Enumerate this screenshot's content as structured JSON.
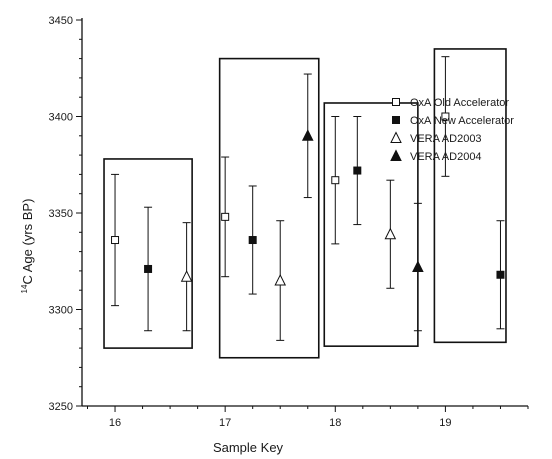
{
  "chart_data": {
    "type": "scatter",
    "xlabel": "Sample Key",
    "ylabel_superscript": "14",
    "ylabel": "C Age (yrs BP)",
    "xlim": [
      15.7,
      19.75
    ],
    "ylim": [
      3250,
      3450
    ],
    "xticks": [
      16,
      17,
      18,
      19
    ],
    "yticks": [
      3250,
      3300,
      3350,
      3400,
      3450
    ],
    "legend_position": "right",
    "series": [
      {
        "name": "OxA Old Accelerator",
        "marker": "square-open",
        "points": [
          {
            "x": 16.0,
            "y": 3336,
            "err_low": 3302,
            "err_high": 3370
          },
          {
            "x": 17.0,
            "y": 3348,
            "err_low": 3317,
            "err_high": 3379
          },
          {
            "x": 18.0,
            "y": 3367,
            "err_low": 3334,
            "err_high": 3400
          },
          {
            "x": 19.0,
            "y": 3400,
            "err_low": 3369,
            "err_high": 3431
          }
        ]
      },
      {
        "name": "OxA New Accelerator",
        "marker": "square-filled",
        "points": [
          {
            "x": 16.3,
            "y": 3321,
            "err_low": 3289,
            "err_high": 3353
          },
          {
            "x": 17.25,
            "y": 3336,
            "err_low": 3308,
            "err_high": 3364
          },
          {
            "x": 18.2,
            "y": 3372,
            "err_low": 3344,
            "err_high": 3400
          },
          {
            "x": 19.5,
            "y": 3318,
            "err_low": 3290,
            "err_high": 3346
          }
        ]
      },
      {
        "name": "VERA AD2003",
        "marker": "triangle-open",
        "points": [
          {
            "x": 16.65,
            "y": 3317,
            "err_low": 3289,
            "err_high": 3345
          },
          {
            "x": 17.5,
            "y": 3315,
            "err_low": 3284,
            "err_high": 3346
          },
          {
            "x": 18.5,
            "y": 3339,
            "err_low": 3311,
            "err_high": 3367
          }
        ]
      },
      {
        "name": "VERA AD2004",
        "marker": "triangle-filled",
        "points": [
          {
            "x": 17.75,
            "y": 3390,
            "err_low": 3358,
            "err_high": 3422
          },
          {
            "x": 18.75,
            "y": 3322,
            "err_low": 3289,
            "err_high": 3355
          }
        ]
      }
    ],
    "group_boxes": [
      {
        "x0": 15.9,
        "x1": 16.7,
        "y0": 3280,
        "y1": 3378
      },
      {
        "x0": 16.95,
        "x1": 17.85,
        "y0": 3275,
        "y1": 3430
      },
      {
        "x0": 17.9,
        "x1": 18.75,
        "y0": 3281,
        "y1": 3407
      },
      {
        "x0": 18.9,
        "x1": 19.55,
        "y0": 3283,
        "y1": 3435
      }
    ]
  }
}
